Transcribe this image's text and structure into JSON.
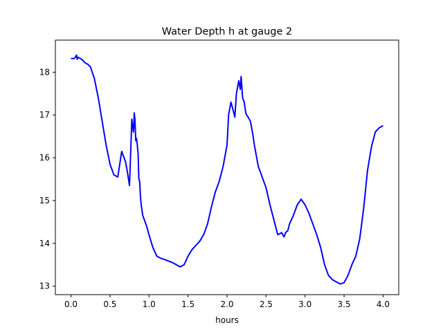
{
  "chart_data": {
    "type": "line",
    "title": "Water Depth h at gauge 2",
    "xlabel": "hours",
    "ylabel": "",
    "xlim": [
      -0.2,
      4.2
    ],
    "ylim": [
      12.8,
      18.75
    ],
    "xticks": [
      "0.0",
      "0.5",
      "1.0",
      "1.5",
      "2.0",
      "2.5",
      "3.0",
      "3.5",
      "4.0"
    ],
    "xtick_values": [
      0.0,
      0.5,
      1.0,
      1.5,
      2.0,
      2.5,
      3.0,
      3.5,
      4.0
    ],
    "yticks": [
      "13",
      "14",
      "15",
      "16",
      "17",
      "18"
    ],
    "ytick_values": [
      13,
      14,
      15,
      16,
      17,
      18
    ],
    "grid": false,
    "legend": "none",
    "series": [
      {
        "color": "#0000ff",
        "x": [
          0.0,
          0.04,
          0.06,
          0.07,
          0.08,
          0.09,
          0.1,
          0.14,
          0.18,
          0.22,
          0.25,
          0.3,
          0.35,
          0.4,
          0.45,
          0.5,
          0.55,
          0.6,
          0.65,
          0.7,
          0.72,
          0.75,
          0.78,
          0.8,
          0.805,
          0.81,
          0.82,
          0.83,
          0.84,
          0.85,
          0.86,
          0.87,
          0.88,
          0.89,
          0.9,
          0.92,
          0.94,
          0.97,
          1.0,
          1.05,
          1.1,
          1.15,
          1.2,
          1.3,
          1.35,
          1.4,
          1.45,
          1.5,
          1.55,
          1.6,
          1.65,
          1.7,
          1.75,
          1.8,
          1.85,
          1.9,
          1.95,
          2.0,
          2.02,
          2.05,
          2.08,
          2.1,
          2.12,
          2.15,
          2.17,
          2.18,
          2.2,
          2.22,
          2.24,
          2.25,
          2.27,
          2.3,
          2.33,
          2.35,
          2.4,
          2.45,
          2.5,
          2.55,
          2.6,
          2.65,
          2.7,
          2.73,
          2.75,
          2.78,
          2.8,
          2.85,
          2.9,
          2.95,
          3.0,
          3.05,
          3.1,
          3.15,
          3.2,
          3.25,
          3.3,
          3.35,
          3.4,
          3.45,
          3.5,
          3.55,
          3.6,
          3.65,
          3.7,
          3.75,
          3.8,
          3.85,
          3.9,
          3.95,
          4.0
        ],
        "y": [
          18.32,
          18.32,
          18.36,
          18.4,
          18.3,
          18.35,
          18.34,
          18.3,
          18.22,
          18.18,
          18.12,
          17.85,
          17.4,
          16.85,
          16.3,
          15.85,
          15.6,
          15.55,
          16.15,
          15.9,
          15.7,
          15.35,
          16.9,
          16.6,
          16.7,
          17.05,
          16.9,
          16.4,
          16.45,
          16.3,
          16.1,
          15.5,
          15.45,
          15.1,
          14.9,
          14.65,
          14.55,
          14.4,
          14.2,
          13.9,
          13.7,
          13.65,
          13.62,
          13.55,
          13.5,
          13.45,
          13.5,
          13.7,
          13.85,
          13.95,
          14.05,
          14.2,
          14.45,
          14.85,
          15.2,
          15.45,
          15.8,
          16.3,
          17.0,
          17.3,
          17.1,
          16.95,
          17.5,
          17.8,
          17.6,
          17.9,
          17.4,
          17.3,
          17.05,
          17.0,
          16.95,
          16.85,
          16.55,
          16.3,
          15.8,
          15.55,
          15.3,
          14.9,
          14.55,
          14.2,
          14.25,
          14.15,
          14.25,
          14.3,
          14.45,
          14.65,
          14.9,
          15.03,
          14.9,
          14.7,
          14.45,
          14.2,
          13.9,
          13.5,
          13.25,
          13.15,
          13.1,
          13.05,
          13.08,
          13.25,
          13.5,
          13.7,
          14.1,
          14.8,
          15.7,
          16.25,
          16.6,
          16.7,
          16.75
        ]
      }
    ]
  }
}
